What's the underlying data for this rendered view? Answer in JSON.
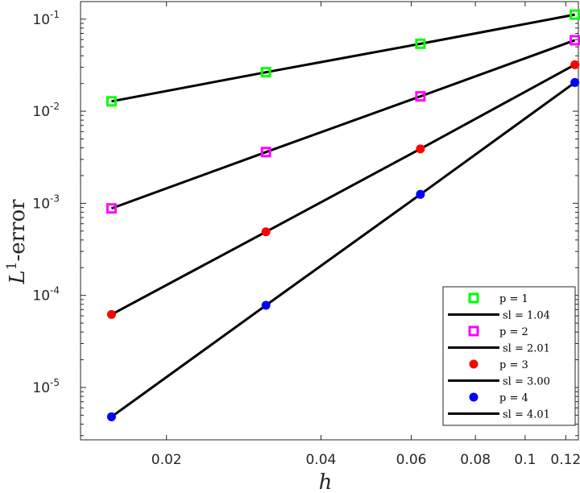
{
  "chart_data": {
    "type": "scatter",
    "x_scale": "log",
    "y_scale": "log",
    "xlabel": "h",
    "ylabel_main": "L",
    "ylabel_sup": "1",
    "ylabel_rest": "-error",
    "xlim": [
      0.0136,
      0.127
    ],
    "ylim": [
      2.7e-06,
      0.155
    ],
    "x": [
      0.015625,
      0.03125,
      0.0625,
      0.125
    ],
    "x_ticks": [
      {
        "value": 0.02,
        "label": "0.02"
      },
      {
        "value": 0.04,
        "label": "0.04"
      },
      {
        "value": 0.06,
        "label": "0.06"
      },
      {
        "value": 0.08,
        "label": "0.08"
      },
      {
        "value": 0.1,
        "label": "0.1"
      },
      {
        "value": 0.12,
        "label": "0.12"
      }
    ],
    "y_ticks": [
      {
        "value": 0.1,
        "base": "10",
        "exp": "-1"
      },
      {
        "value": 0.01,
        "base": "10",
        "exp": "-2"
      },
      {
        "value": 0.001,
        "base": "10",
        "exp": "-3"
      },
      {
        "value": 0.0001,
        "base": "10",
        "exp": "-4"
      },
      {
        "value": 1e-05,
        "base": "10",
        "exp": "-5"
      }
    ],
    "grid": false,
    "legend_position": "bottom-right",
    "series": [
      {
        "name": "p = 1",
        "fit_name": "sl = 1.04",
        "marker": "square",
        "color": "#00ff00",
        "values": [
          0.0128,
          0.0265,
          0.054,
          0.112
        ]
      },
      {
        "name": "p = 2",
        "fit_name": "sl = 2.01",
        "marker": "square",
        "color": "#ff00ff",
        "values": [
          0.00088,
          0.0036,
          0.0145,
          0.059
        ]
      },
      {
        "name": "p = 3",
        "fit_name": "sl = 3.00",
        "marker": "circle",
        "color": "#ff0000",
        "values": [
          6.2e-05,
          0.00049,
          0.0039,
          0.032
        ]
      },
      {
        "name": "p = 4",
        "fit_name": "sl = 4.01",
        "marker": "circle",
        "color": "#0000ff",
        "values": [
          4.8e-06,
          7.8e-05,
          0.00125,
          0.0205
        ]
      }
    ],
    "fit_line_color": "#000000"
  }
}
